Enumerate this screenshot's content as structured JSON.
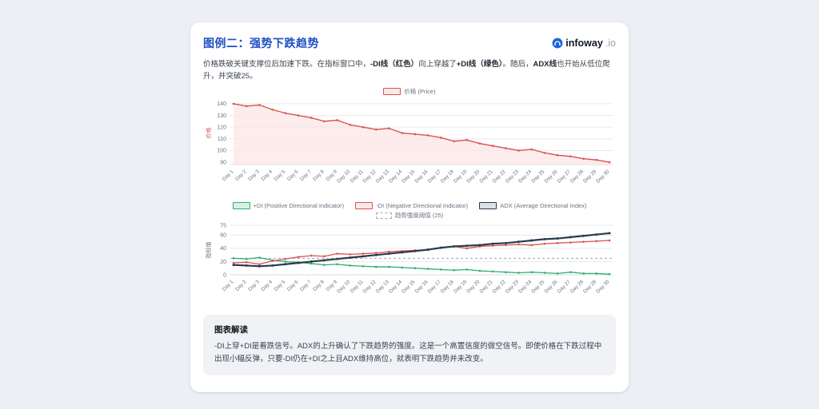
{
  "header": {
    "title": "图例二：强势下跌趋势",
    "title_color": "#1e4fc2",
    "logo": {
      "brand": "infoway",
      "suffix": ".io",
      "icon_color": "#1c64d9"
    }
  },
  "description": {
    "segments": [
      {
        "text": "价格跌破关键支撑位后加速下跌。在指标窗口中，",
        "bold": false
      },
      {
        "text": "-DI线（红色）",
        "bold": true
      },
      {
        "text": "向上穿越了",
        "bold": false
      },
      {
        "text": "+DI线（绿色）",
        "bold": true
      },
      {
        "text": "。随后，",
        "bold": false
      },
      {
        "text": "ADX线",
        "bold": true
      },
      {
        "text": "也开始从低位爬升，并突破25。",
        "bold": false
      }
    ]
  },
  "chart_data": [
    {
      "type": "area",
      "title": "价格走势",
      "categories": [
        "Day 1",
        "Day 2",
        "Day 3",
        "Day 4",
        "Day 5",
        "Day 6",
        "Day 7",
        "Day 8",
        "Day 9",
        "Day 10",
        "Day 11",
        "Day 12",
        "Day 13",
        "Day 14",
        "Day 15",
        "Day 16",
        "Day 17",
        "Day 18",
        "Day 19",
        "Day 20",
        "Day 21",
        "Day 22",
        "Day 23",
        "Day 24",
        "Day 25",
        "Day 26",
        "Day 27",
        "Day 28",
        "Day 29",
        "Day 30"
      ],
      "xlabel": "",
      "ylabel": "价格",
      "ylabel_color": "#d9534f",
      "ylim": [
        88,
        142
      ],
      "yticks": [
        90,
        100,
        110,
        120,
        130,
        140
      ],
      "grid": true,
      "legend_position": "top-center",
      "series": [
        {
          "name": "价格 (Price)",
          "color": "#d9534f",
          "fill": "#fbe7e5",
          "area": true,
          "line_width": 1.4,
          "values": [
            140,
            138,
            139,
            135,
            132,
            130,
            128,
            125,
            126,
            122,
            120,
            118,
            119,
            115,
            114,
            113,
            111,
            108,
            109,
            106,
            104,
            102,
            100,
            101,
            98,
            96,
            95,
            93,
            92,
            90
          ]
        }
      ]
    },
    {
      "type": "line",
      "title": "方向指标与趋势强度",
      "categories": [
        "Day 1",
        "Day 2",
        "Day 3",
        "Day 4",
        "Day 5",
        "Day 6",
        "Day 7",
        "Day 8",
        "Day 9",
        "Day 10",
        "Day 11",
        "Day 12",
        "Day 13",
        "Day 14",
        "Day 15",
        "Day 16",
        "Day 17",
        "Day 18",
        "Day 19",
        "Day 20",
        "Day 21",
        "Day 22",
        "Day 23",
        "Day 24",
        "Day 25",
        "Day 26",
        "Day 27",
        "Day 28",
        "Day 29",
        "Day 30"
      ],
      "xlabel": "",
      "ylabel": "指标值",
      "ylabel_color": "#6b7280",
      "ylim": [
        0,
        75
      ],
      "yticks": [
        0,
        20,
        40,
        60,
        75
      ],
      "grid": true,
      "legend_position": "top-center",
      "threshold": {
        "value": 25,
        "label": "趋势强度阈值 (25)",
        "color": "#a0a6ad",
        "style": "dashed"
      },
      "series": [
        {
          "name": "+DI (Positive Directional Indicator)",
          "color": "#2fae71",
          "fill": "#d6f2e3",
          "line_width": 1.3,
          "values": [
            25,
            24,
            26,
            22,
            20,
            19,
            17,
            15,
            16,
            14,
            13,
            12,
            12,
            11,
            10,
            9,
            8,
            7,
            8,
            6,
            5,
            4,
            3,
            4,
            3,
            2,
            4,
            2,
            2,
            1
          ]
        },
        {
          "name": "-DI (Negative Directional Indicator)",
          "color": "#d9534f",
          "fill": "#fbe7e5",
          "line_width": 1.3,
          "values": [
            18,
            19,
            16,
            21,
            24,
            27,
            29,
            28,
            32,
            31,
            32,
            33,
            35,
            36,
            37,
            38,
            41,
            43,
            40,
            43,
            44,
            45,
            46,
            45,
            47,
            48,
            49,
            50,
            51,
            52
          ]
        },
        {
          "name": "ADX (Average Directional Index)",
          "color": "#2c3b4e",
          "fill": "#dbe1e8",
          "line_width": 2.2,
          "values": [
            15,
            14,
            13,
            14,
            16,
            18,
            20,
            22,
            24,
            26,
            28,
            30,
            32,
            34,
            36,
            38,
            41,
            43,
            44,
            45,
            47,
            48,
            50,
            52,
            54,
            55,
            57,
            59,
            61,
            63
          ]
        }
      ]
    }
  ],
  "interpretation": {
    "heading": "图表解读",
    "text": "-DI上穿+DI是看跌信号。ADX的上升确认了下跌趋势的强度。这是一个高置信度的做空信号。即使价格在下跌过程中出现小幅反弹，只要-DI仍在+DI之上且ADX维持高位，就表明下跌趋势并未改变。"
  }
}
